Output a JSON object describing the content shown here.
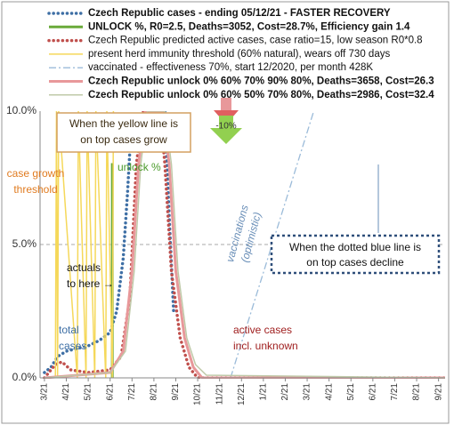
{
  "chart_data": {
    "type": "line",
    "xlim": [
      -0.2,
      18.3
    ],
    "ylim": [
      0,
      10
    ],
    "yticks": [
      {
        "value": 0,
        "label": "0.0%"
      },
      {
        "value": 5,
        "label": "5.0%"
      },
      {
        "value": 10,
        "label": "10.0%"
      }
    ],
    "xticks": [
      {
        "value": 0,
        "label": "3/21"
      },
      {
        "value": 1,
        "label": "4/21"
      },
      {
        "value": 2,
        "label": "5/21"
      },
      {
        "value": 3,
        "label": "6/21"
      },
      {
        "value": 4,
        "label": "7/21"
      },
      {
        "value": 5,
        "label": "8/21"
      },
      {
        "value": 6,
        "label": "9/21"
      },
      {
        "value": 7,
        "label": "10/21"
      },
      {
        "value": 8,
        "label": "11/21"
      },
      {
        "value": 9,
        "label": "12/21"
      },
      {
        "value": 10,
        "label": "1/21"
      },
      {
        "value": 11,
        "label": "2/21"
      },
      {
        "value": 12,
        "label": "3/21"
      },
      {
        "value": 13,
        "label": "4/21"
      },
      {
        "value": 14,
        "label": "5/21"
      },
      {
        "value": 15,
        "label": "6/21"
      },
      {
        "value": 16,
        "label": "7/21"
      },
      {
        "value": 17,
        "label": "8/21"
      },
      {
        "value": 18,
        "label": "9/21"
      }
    ],
    "grid": true,
    "series": [
      {
        "name": "Czech Republic cases - ending 05/12/21 - FASTER RECOVERY",
        "color": "#3e6fa5",
        "style": "dotted",
        "bold": true,
        "x": [
          0,
          0.3,
          0.6,
          1,
          1.5,
          2,
          2.5,
          3,
          3.3,
          3.6,
          3.8,
          4.0,
          4.1,
          5.5,
          5.7,
          5.9
        ],
        "values": [
          0.2,
          0.4,
          0.8,
          1.0,
          1.1,
          1.2,
          1.4,
          1.7,
          2.5,
          4.5,
          7,
          10,
          null,
          10,
          6,
          2.5
        ]
      },
      {
        "name": "UNLOCK %, R0=2.5, Deaths=3052, Cost=28.7%, Efficiency gain 1.4",
        "color": "#6aaa3a",
        "style": "solid-thick",
        "bold": true,
        "x": [
          3.1,
          3.1,
          3.15
        ],
        "values": [
          0,
          8,
          8
        ]
      },
      {
        "name": "Czech Republic predicted active cases, case ratio=15, low season R0*0.8",
        "color": "#c0504d",
        "style": "dotted",
        "bold": false,
        "x": [
          0,
          0.5,
          0.8,
          1.2,
          2,
          3,
          3.5,
          3.9,
          4.2,
          4.5,
          5.0,
          5.3,
          5.5,
          5.8,
          6.2,
          6.6,
          7,
          18.3
        ],
        "values": [
          0,
          0.5,
          0.6,
          0.3,
          0.2,
          0.3,
          0.8,
          3,
          8,
          10,
          10,
          10,
          8,
          4,
          1.5,
          0.4,
          0,
          0
        ]
      },
      {
        "name": "present herd immunity threshold (60% natural), wears off 730 days",
        "color": "#f5d85a",
        "style": "solid",
        "bold": false,
        "x": [
          0.5,
          0.55,
          0.6,
          0.65,
          1.5,
          1.55,
          1.9,
          1.95,
          2.3,
          2.35,
          2.8,
          2.85,
          3.1,
          3.15
        ],
        "values": [
          0,
          10,
          0,
          10,
          0,
          10,
          0,
          10,
          0,
          10,
          0,
          10,
          0,
          10
        ]
      },
      {
        "name": "vaccinated - effectiveness 70%, start 12/2020, per month 428K",
        "color": "#9bbbd9",
        "style": "dashdot",
        "bold": false,
        "x": [
          8.5,
          12.3
        ],
        "values": [
          0,
          10
        ]
      },
      {
        "name": "Czech Republic unlock 0% 60% 70% 90% 80%,  Deaths=3658, Cost=26.3",
        "color": "#e8989a",
        "style": "solid-thick",
        "bold": true,
        "x": [
          0,
          3,
          3.6,
          4,
          4.3,
          4.6,
          5,
          5.4,
          5.7,
          6,
          6.4,
          6.8,
          7.2,
          18.3
        ],
        "values": [
          0,
          0.2,
          1,
          4,
          8,
          10,
          10,
          10,
          8,
          4,
          1.5,
          0.4,
          0,
          0
        ]
      },
      {
        "name": "Czech Republic unlock 0% 60% 50% 70% 80%,  Deaths=2986, Cost=32.4",
        "color": "#bfc9a8",
        "style": "solid",
        "bold": true,
        "x": [
          0,
          3,
          3.7,
          4.1,
          4.4,
          4.7,
          5.1,
          5.5,
          5.8,
          6.1,
          6.5,
          6.9,
          7.4,
          18.3
        ],
        "values": [
          0,
          0.2,
          1,
          4,
          8,
          10,
          10,
          10,
          8,
          4,
          1.5,
          0.5,
          0.1,
          0
        ]
      }
    ],
    "annotations": {
      "yellow_box": [
        "When the yellow line is",
        "on top cases grow"
      ],
      "threshold": [
        "case growth",
        "threshold"
      ],
      "unlock": "unlock %",
      "actuals": [
        "actuals",
        "to here →"
      ],
      "total": [
        "total",
        "cases"
      ],
      "vaccinations": [
        "vaccinations",
        "(optimistic)"
      ],
      "blue_box": [
        "When the dotted blue line is",
        "on top cases decline"
      ],
      "active": [
        "active cases",
        "incl. unknown"
      ],
      "arrow": "-10%"
    }
  }
}
